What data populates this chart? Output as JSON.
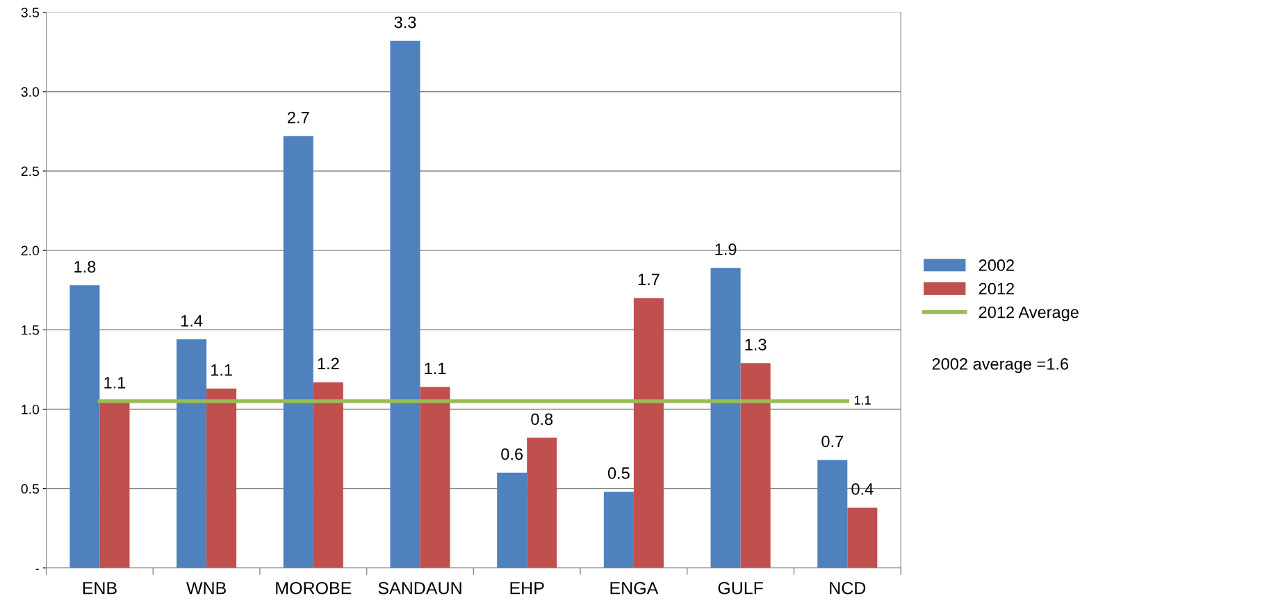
{
  "chart_data": {
    "type": "bar",
    "categories": [
      "ENB",
      "WNB",
      "MOROBE",
      "SANDAUN",
      "EHP",
      "ENGA",
      "GULF",
      "NCD"
    ],
    "series": [
      {
        "name": "2002",
        "color": "#4f81bd",
        "values": [
          1.78,
          1.44,
          2.72,
          3.32,
          0.6,
          0.48,
          1.89,
          0.68
        ],
        "value_labels": [
          "1.8",
          "1.4",
          "2.7",
          "3.3",
          "0.6",
          "0.5",
          "1.9",
          "0.7"
        ]
      },
      {
        "name": "2012",
        "color": "#c0504d",
        "values": [
          1.05,
          1.13,
          1.17,
          1.14,
          0.82,
          1.7,
          1.29,
          0.38
        ],
        "value_labels": [
          "1.1",
          "1.1",
          "1.2",
          "1.1",
          "0.8",
          "1.7",
          "1.3",
          "0.4"
        ]
      },
      {
        "name": "2012 Average",
        "type": "line",
        "color": "#9bbb59",
        "values": [
          1.05,
          1.05,
          1.05,
          1.05,
          1.05,
          1.05,
          1.05,
          1.05
        ],
        "value_labels": [
          null,
          null,
          null,
          null,
          null,
          null,
          null,
          "1.1"
        ]
      }
    ],
    "ylim": [
      0,
      3.5
    ],
    "yticks": [
      {
        "value": 0,
        "label": "-"
      },
      0.5,
      {
        "value": 1,
        "label": "1.0"
      },
      1.5,
      {
        "value": 2,
        "label": "2.0"
      },
      2.5,
      {
        "value": 3,
        "label": "3.0"
      },
      3.5
    ],
    "grid": "y",
    "legend": "right",
    "marker": "none",
    "annotations": [
      "2002 average =1.6"
    ]
  }
}
